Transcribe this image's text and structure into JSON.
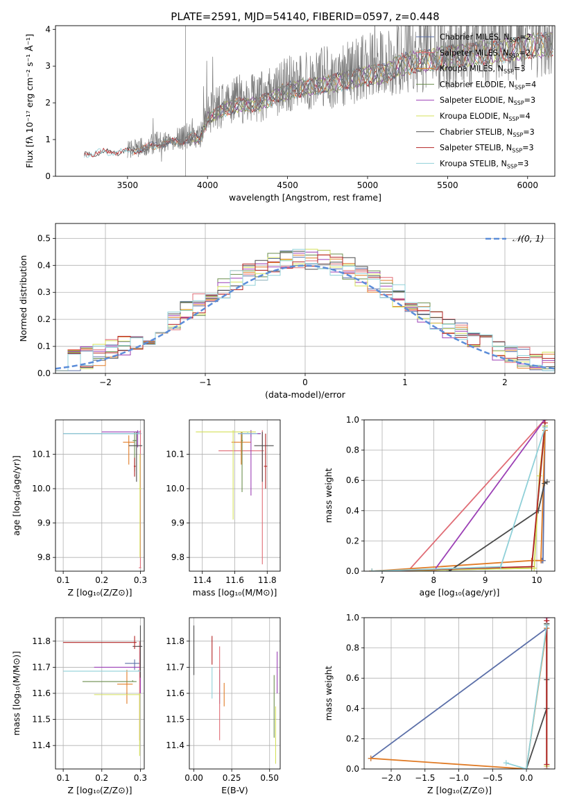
{
  "figure": {
    "title": "PLATE=2591, MJD=54140, FIBERID=0597, z=0.448",
    "palette": {
      "Chabrier MILES": "#5b6fa8",
      "Salpeter MILES": "#e06c75",
      "Kroupa MILES": "#e07b26",
      "Chabrier ELODIE": "#6b8e4e",
      "Salpeter ELODIE": "#9b3fb5",
      "Kroupa ELODIE": "#d4e05a",
      "Chabrier STELIB": "#4a4a4a",
      "Salpeter STELIB": "#b22222",
      "Kroupa STELIB": "#8fd0d8"
    }
  },
  "chart_data": [
    {
      "id": "spectrum",
      "type": "line",
      "title": "PLATE=2591, MJD=54140, FIBERID=0597, z=0.448",
      "xlabel": "wavelength [Angstrom, rest frame]",
      "ylabel": "Flux [fλ 10⁻¹⁷ erg cm⁻² s⁻¹ Å⁻¹]",
      "xlim": [
        3050,
        6170
      ],
      "ylim": [
        0,
        4.1
      ],
      "xticks": [
        3500,
        4000,
        4500,
        5000,
        5500,
        6000
      ],
      "yticks": [
        0,
        1,
        2,
        3,
        4
      ],
      "legend_position": "right",
      "legend": [
        {
          "label": "Chabrier MILES, N",
          "sub": "SSP",
          "suffix": "=2"
        },
        {
          "label": "Salpeter MILES, N",
          "sub": "SSP",
          "suffix": "=2"
        },
        {
          "label": "Kroupa MILES, N",
          "sub": "SSP",
          "suffix": "=3"
        },
        {
          "label": "Chabrier ELODIE, N",
          "sub": "SSP",
          "suffix": "=4"
        },
        {
          "label": "Salpeter ELODIE, N",
          "sub": "SSP",
          "suffix": "=3"
        },
        {
          "label": "Kroupa ELODIE, N",
          "sub": "SSP",
          "suffix": "=4"
        },
        {
          "label": "Chabrier STELIB, N",
          "sub": "SSP",
          "suffix": "=3"
        },
        {
          "label": "Salpeter STELIB, N",
          "sub": "SSP",
          "suffix": "=3"
        },
        {
          "label": "Kroupa STELIB, N",
          "sub": "SSP",
          "suffix": "=3"
        }
      ],
      "continuum": [
        [
          3230,
          0.65
        ],
        [
          3350,
          0.7
        ],
        [
          3500,
          0.72
        ],
        [
          3600,
          0.8
        ],
        [
          3700,
          0.95
        ],
        [
          3800,
          1.0
        ],
        [
          3900,
          1.15
        ],
        [
          3950,
          1.05
        ],
        [
          4000,
          1.7
        ],
        [
          4100,
          1.95
        ],
        [
          4200,
          2.1
        ],
        [
          4300,
          2.1
        ],
        [
          4400,
          2.3
        ],
        [
          4500,
          2.5
        ],
        [
          4600,
          2.6
        ],
        [
          4700,
          2.65
        ],
        [
          4800,
          2.75
        ],
        [
          4900,
          2.85
        ],
        [
          5000,
          2.95
        ],
        [
          5100,
          3.0
        ],
        [
          5200,
          3.25
        ],
        [
          5300,
          3.35
        ],
        [
          5400,
          3.4
        ],
        [
          5500,
          3.5
        ],
        [
          5600,
          3.55
        ],
        [
          5700,
          3.6
        ],
        [
          5800,
          3.65
        ],
        [
          5900,
          3.7
        ],
        [
          6000,
          3.8
        ],
        [
          6100,
          3.85
        ]
      ]
    },
    {
      "id": "residuals",
      "type": "line",
      "xlabel": "(data-model)/error",
      "ylabel": "Normed distribution",
      "xlim": [
        -2.5,
        2.5
      ],
      "ylim": [
        0,
        0.555
      ],
      "xticks": [
        -2,
        -1,
        0,
        1,
        2
      ],
      "yticks": [
        0,
        0.1,
        0.2,
        0.3,
        0.4,
        0.5
      ],
      "legend_position": "top-right",
      "legend_label": "𝒩(0, 1)",
      "gaussian": {
        "mean": 0,
        "sigma": 1,
        "color": "#5b8dd9"
      }
    },
    {
      "id": "age-vs-z",
      "type": "scatter",
      "xlabel": "Z [log₁₀(Z/Z⊙)]",
      "ylabel": "age  [log₁₀(age/yr)]",
      "xlim": [
        0.08,
        0.31
      ],
      "ylim": [
        9.76,
        10.2
      ],
      "xticks": [
        0.1,
        0.2,
        0.3
      ],
      "yticks": [
        9.8,
        9.9,
        10.0,
        10.1
      ],
      "points": [
        {
          "model": "Chabrier MILES",
          "x": 0.298,
          "y": 10.16,
          "xl": 0.1,
          "xr": 0.302,
          "yl": 10.16,
          "yh": 10.16
        },
        {
          "model": "Salpeter MILES",
          "x": 0.3,
          "y": 9.77,
          "xl": 0.296,
          "xr": 0.302,
          "yl": 9.77,
          "yh": 10.17
        },
        {
          "model": "Kroupa MILES",
          "x": 0.27,
          "y": 10.135,
          "xl": 0.255,
          "xr": 0.285,
          "yl": 10.07,
          "yh": 10.155
        },
        {
          "model": "Chabrier ELODIE",
          "x": 0.285,
          "y": 10.14,
          "xl": 0.28,
          "xr": 0.29,
          "yl": 10.05,
          "yh": 10.165
        },
        {
          "model": "Salpeter ELODIE",
          "x": 0.293,
          "y": 10.165,
          "xl": 0.2,
          "xr": 0.3,
          "yl": 10.12,
          "yh": 10.17
        },
        {
          "model": "Kroupa ELODIE",
          "x": 0.299,
          "y": 10.0,
          "xl": 0.296,
          "xr": 0.302,
          "yl": 9.8,
          "yh": 10.1
        },
        {
          "model": "Chabrier STELIB",
          "x": 0.29,
          "y": 10.125,
          "xl": 0.27,
          "xr": 0.305,
          "yl": 10.02,
          "yh": 10.165
        },
        {
          "model": "Salpeter STELIB",
          "x": 0.285,
          "y": 10.065,
          "xl": 0.283,
          "xr": 0.288,
          "yl": 10.035,
          "yh": 10.09
        },
        {
          "model": "Kroupa STELIB",
          "x": 0.295,
          "y": 10.16,
          "xl": 0.1,
          "xr": 0.3,
          "yl": 10.16,
          "yh": 10.165
        }
      ]
    },
    {
      "id": "age-vs-mass",
      "type": "scatter",
      "xlabel": "mass [log₁₀(M/M⊙)]",
      "ylabel": "",
      "xlim": [
        11.32,
        11.88
      ],
      "ylim": [
        9.76,
        10.2
      ],
      "xticks": [
        11.4,
        11.6,
        11.8
      ],
      "yticks": [
        9.8,
        9.9,
        10.0,
        10.1
      ],
      "points": [
        {
          "model": "Chabrier MILES",
          "x": 11.7,
          "y": 10.16,
          "xl": 11.62,
          "xr": 11.76,
          "yl": 10.15,
          "yh": 10.17
        },
        {
          "model": "Salpeter MILES",
          "x": 11.77,
          "y": 10.11,
          "xl": 11.5,
          "xr": 11.78,
          "yl": 9.78,
          "yh": 10.17
        },
        {
          "model": "Kroupa MILES",
          "x": 11.64,
          "y": 10.135,
          "xl": 11.58,
          "xr": 11.7,
          "yl": 10.07,
          "yh": 10.165
        },
        {
          "model": "Chabrier ELODIE",
          "x": 11.645,
          "y": 10.14,
          "xl": 11.64,
          "xr": 11.65,
          "yl": 9.99,
          "yh": 10.165
        },
        {
          "model": "Salpeter ELODIE",
          "x": 11.7,
          "y": 10.16,
          "xl": 11.62,
          "xr": 11.76,
          "yl": 9.98,
          "yh": 10.17
        },
        {
          "model": "Kroupa ELODIE",
          "x": 11.59,
          "y": 10.165,
          "xl": 11.36,
          "xr": 11.73,
          "yl": 9.91,
          "yh": 10.17
        },
        {
          "model": "Chabrier STELIB",
          "x": 11.77,
          "y": 10.125,
          "xl": 11.72,
          "xr": 11.84,
          "yl": 10.02,
          "yh": 10.165
        },
        {
          "model": "Salpeter STELIB",
          "x": 11.79,
          "y": 10.065,
          "xl": 11.78,
          "xr": 11.8,
          "yl": 10.0,
          "yh": 10.16
        },
        {
          "model": "Kroupa STELIB",
          "x": 11.68,
          "y": 10.16,
          "xl": 11.62,
          "xr": 11.74,
          "yl": 10.16,
          "yh": 10.165
        }
      ]
    },
    {
      "id": "massweight-vs-age",
      "type": "line",
      "xlabel": "age  [log₁₀(age/yr)]",
      "ylabel": "mass weight",
      "xlim": [
        6.65,
        10.35
      ],
      "ylim": [
        0,
        1
      ],
      "xticks": [
        7,
        8,
        9,
        10
      ],
      "yticks": [
        0,
        0.2,
        0.4,
        0.6,
        0.8,
        1.0
      ],
      "series": [
        {
          "model": "Chabrier MILES",
          "x": [
            10.1,
            10.12,
            10.16
          ],
          "y": [
            0.07,
            0.07,
            0.93
          ]
        },
        {
          "model": "Salpeter MILES",
          "x": [
            7.5,
            10.15
          ],
          "y": [
            0.0,
            1.0
          ]
        },
        {
          "model": "Kroupa MILES",
          "x": [
            6.8,
            9.9,
            10.08,
            10.16
          ],
          "y": [
            0.0,
            0.07,
            0.07,
            0.93
          ]
        },
        {
          "model": "Chabrier ELODIE",
          "x": [
            6.8,
            9.9,
            10.16
          ],
          "y": [
            0.0,
            0.02,
            0.96
          ]
        },
        {
          "model": "Salpeter ELODIE",
          "x": [
            8.0,
            10.15
          ],
          "y": [
            0.0,
            1.0
          ]
        },
        {
          "model": "Kroupa ELODIE",
          "x": [
            6.8,
            9.95,
            10.05,
            10.16
          ],
          "y": [
            0.0,
            0.02,
            0.63,
            0.96
          ]
        },
        {
          "model": "Chabrier STELIB",
          "x": [
            8.3,
            10.03,
            10.15,
            10.2
          ],
          "y": [
            0.0,
            0.4,
            0.58,
            0.59
          ]
        },
        {
          "model": "Salpeter STELIB",
          "x": [
            6.8,
            9.9,
            10.16
          ],
          "y": [
            0.0,
            0.03,
            0.98
          ]
        },
        {
          "model": "Kroupa STELIB",
          "x": [
            6.8,
            9.3,
            10.16
          ],
          "y": [
            0.0,
            0.03,
            0.95
          ]
        }
      ]
    },
    {
      "id": "mass-vs-z",
      "type": "scatter",
      "xlabel": "Z [log₁₀(Z/Z⊙)]",
      "ylabel": "mass [log₁₀(M/M⊙)]",
      "xlim": [
        0.08,
        0.31
      ],
      "ylim": [
        11.31,
        11.89
      ],
      "xticks": [
        0.1,
        0.2,
        0.3
      ],
      "yticks": [
        11.4,
        11.5,
        11.6,
        11.7,
        11.8
      ],
      "points": [
        {
          "model": "Chabrier MILES",
          "x": 0.285,
          "y": 11.715,
          "xl": 0.26,
          "xr": 0.3,
          "yl": 11.69,
          "yh": 11.73
        },
        {
          "model": "Salpeter MILES",
          "x": 0.298,
          "y": 11.78,
          "xl": 0.295,
          "xr": 0.302,
          "yl": 11.42,
          "yh": 11.8
        },
        {
          "model": "Kroupa MILES",
          "x": 0.265,
          "y": 11.635,
          "xl": 0.24,
          "xr": 0.28,
          "yl": 11.56,
          "yh": 11.69
        },
        {
          "model": "Chabrier ELODIE",
          "x": 0.28,
          "y": 11.645,
          "xl": 0.15,
          "xr": 0.29,
          "yl": 11.645,
          "yh": 11.65
        },
        {
          "model": "Salpeter ELODIE",
          "x": 0.3,
          "y": 11.7,
          "xl": 0.18,
          "xr": 0.3,
          "yl": 11.6,
          "yh": 11.76
        },
        {
          "model": "Kroupa ELODIE",
          "x": 0.298,
          "y": 11.595,
          "xl": 0.18,
          "xr": 0.3,
          "yl": 11.36,
          "yh": 11.6
        },
        {
          "model": "Chabrier STELIB",
          "x": 0.3,
          "y": 11.78,
          "xl": 0.28,
          "xr": 0.305,
          "yl": 11.66,
          "yh": 11.86
        },
        {
          "model": "Salpeter STELIB",
          "x": 0.285,
          "y": 11.795,
          "xl": 0.1,
          "xr": 0.29,
          "yl": 11.77,
          "yh": 11.82
        },
        {
          "model": "Kroupa STELIB",
          "x": 0.295,
          "y": 11.685,
          "xl": 0.1,
          "xr": 0.3,
          "yl": 11.685,
          "yh": 11.69
        }
      ]
    },
    {
      "id": "mass-vs-ebv",
      "type": "scatter",
      "xlabel": "E(B-V)",
      "ylabel": "",
      "xlim": [
        -0.03,
        0.57
      ],
      "ylim": [
        11.31,
        11.89
      ],
      "xticks": [
        0.0,
        0.25,
        0.5
      ],
      "yticks": [
        11.4,
        11.5,
        11.6,
        11.7,
        11.8
      ],
      "points": [
        {
          "model": "Chabrier MILES",
          "x": 0.17,
          "y": 11.62,
          "xl": 0.17,
          "xr": 0.17,
          "yl": 11.56,
          "yh": 11.69
        },
        {
          "model": "Salpeter MILES",
          "x": 0.17,
          "y": 11.7,
          "xl": 0.17,
          "xr": 0.17,
          "yl": 11.42,
          "yh": 11.78
        },
        {
          "model": "Kroupa MILES",
          "x": 0.2,
          "y": 11.6,
          "xl": 0.2,
          "xr": 0.2,
          "yl": 11.55,
          "yh": 11.64
        },
        {
          "model": "Chabrier ELODIE",
          "x": 0.53,
          "y": 11.55,
          "xl": 0.53,
          "xr": 0.53,
          "yl": 11.43,
          "yh": 11.67
        },
        {
          "model": "Salpeter ELODIE",
          "x": 0.55,
          "y": 11.68,
          "xl": 0.55,
          "xr": 0.55,
          "yl": 11.6,
          "yh": 11.76
        },
        {
          "model": "Kroupa ELODIE",
          "x": 0.54,
          "y": 11.45,
          "xl": 0.54,
          "xr": 0.54,
          "yl": 11.33,
          "yh": 11.55
        },
        {
          "model": "Chabrier STELIB",
          "x": 0.0,
          "y": 11.76,
          "xl": 0.0,
          "xr": 0.0,
          "yl": 11.67,
          "yh": 11.86
        },
        {
          "model": "Salpeter STELIB",
          "x": 0.12,
          "y": 11.77,
          "xl": 0.12,
          "xr": 0.12,
          "yl": 11.71,
          "yh": 11.82
        },
        {
          "model": "Kroupa STELIB",
          "x": 0.12,
          "y": 11.64,
          "xl": 0.12,
          "xr": 0.12,
          "yl": 11.58,
          "yh": 11.7
        }
      ]
    },
    {
      "id": "massweight-vs-z",
      "type": "line",
      "xlabel": "Z [log₁₀(Z/Z⊙)]",
      "ylabel": "mass weight",
      "xlim": [
        -2.4,
        0.42
      ],
      "ylim": [
        0,
        1
      ],
      "xticks": [
        -2.0,
        -1.5,
        -1.0,
        -0.5,
        0.0
      ],
      "yticks": [
        0,
        0.2,
        0.4,
        0.6,
        0.8,
        1.0
      ],
      "series": [
        {
          "model": "Chabrier MILES",
          "x": [
            -2.3,
            0.3
          ],
          "y": [
            0.07,
            0.93
          ]
        },
        {
          "model": "Salpeter MILES",
          "x": [
            0.3,
            0.3
          ],
          "y": [
            0.0,
            1.0
          ]
        },
        {
          "model": "Kroupa MILES",
          "x": [
            -2.3,
            0.0,
            0.3
          ],
          "y": [
            0.07,
            0.0,
            0.93
          ]
        },
        {
          "model": "Chabrier ELODIE",
          "x": [
            0.3,
            0.3
          ],
          "y": [
            0.02,
            0.96
          ]
        },
        {
          "model": "Salpeter ELODIE",
          "x": [
            0.3,
            0.3
          ],
          "y": [
            0.0,
            1.0
          ]
        },
        {
          "model": "Kroupa ELODIE",
          "x": [
            0.3,
            0.3
          ],
          "y": [
            0.02,
            0.96
          ]
        },
        {
          "model": "Chabrier STELIB",
          "x": [
            0.0,
            0.3,
            0.3,
            0.3
          ],
          "y": [
            0.0,
            0.4,
            0.59,
            0.96
          ]
        },
        {
          "model": "Salpeter STELIB",
          "x": [
            0.3,
            0.3
          ],
          "y": [
            0.03,
            0.98
          ]
        },
        {
          "model": "Kroupa STELIB",
          "x": [
            -0.3,
            0.0,
            0.3
          ],
          "y": [
            0.04,
            0.0,
            0.95
          ]
        }
      ]
    }
  ]
}
